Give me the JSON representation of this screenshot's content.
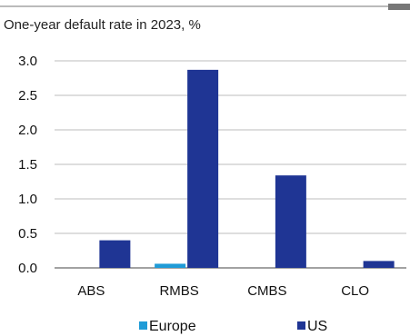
{
  "chart_data": {
    "type": "bar",
    "title": "One-year default rate in 2023, %",
    "categories": [
      "ABS",
      "RMBS",
      "CMBS",
      "CLO"
    ],
    "series": [
      {
        "name": "Europe",
        "color": "#1f9bd7",
        "values": [
          0.0,
          0.06,
          0.0,
          0.0
        ]
      },
      {
        "name": "US",
        "color": "#1f3594",
        "values": [
          0.4,
          2.87,
          1.34,
          0.1
        ]
      }
    ],
    "ylim": [
      0,
      3.0
    ],
    "yticks": [
      "0.0",
      "0.5",
      "1.0",
      "1.5",
      "2.0",
      "2.5",
      "3.0"
    ],
    "grid": true,
    "legend": "bottom"
  }
}
